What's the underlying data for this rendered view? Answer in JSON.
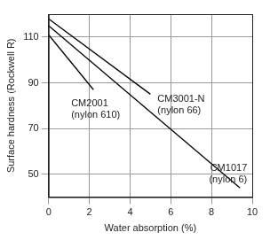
{
  "chart_data": {
    "type": "line",
    "x_label": "Water absorption (%)",
    "y_label": "Surface hardness (Rockwell R)",
    "xlim": [
      0,
      10
    ],
    "xticks": [
      0,
      2,
      4,
      6,
      8,
      10
    ],
    "ylim": [
      40,
      120
    ],
    "yticks": [
      50,
      70,
      90,
      110
    ],
    "grid": true,
    "series": [
      {
        "name": "CM2001 (nylon 610)",
        "color": "#000000",
        "x": [
          0,
          2.2
        ],
        "values": [
          111,
          87
        ]
      },
      {
        "name": "CM3001-N (nylon 66)",
        "color": "#000000",
        "x": [
          0,
          5
        ],
        "values": [
          118,
          85
        ]
      },
      {
        "name": "CM1017 (nylon 6)",
        "color": "#000000",
        "x": [
          0,
          9.4
        ],
        "values": [
          115,
          44
        ]
      }
    ]
  }
}
